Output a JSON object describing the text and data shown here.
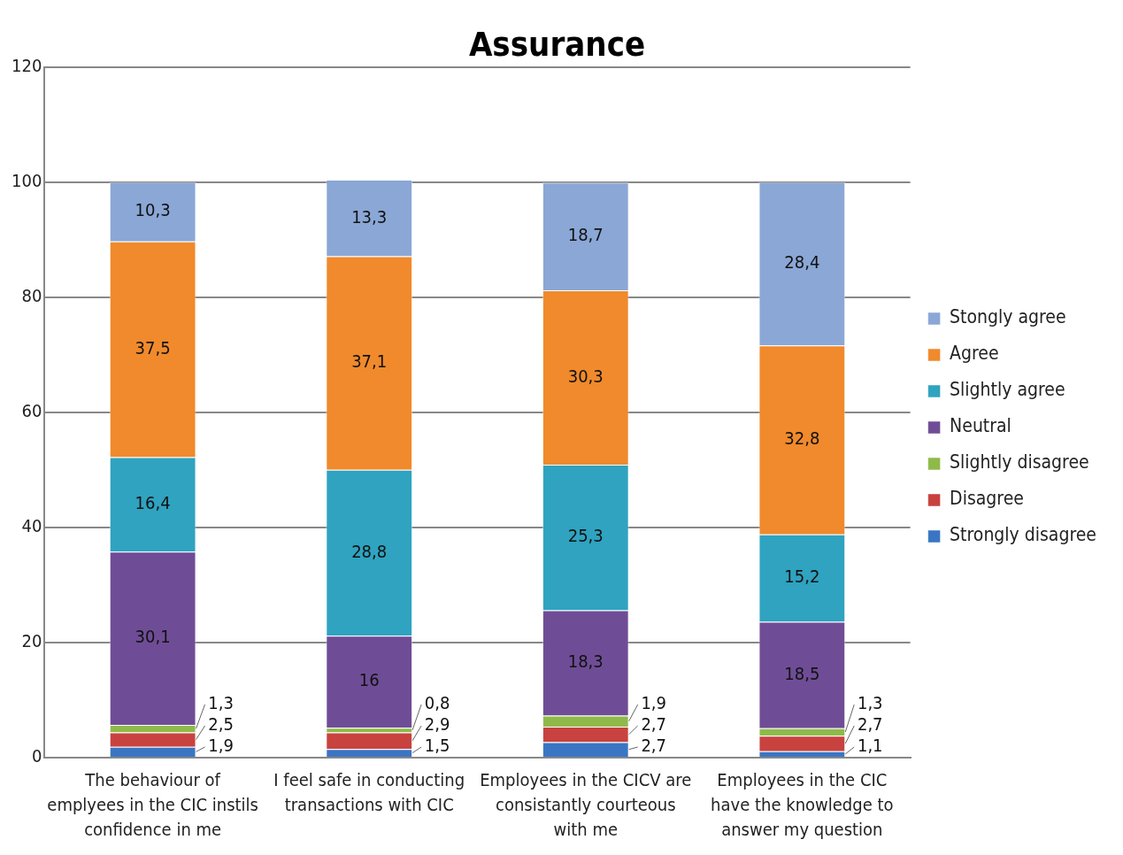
{
  "chart_data": {
    "type": "bar",
    "title": "Assurance",
    "stacked": true,
    "categories": [
      "The behaviour of emplyees in the CIC instils confidence in me",
      "I feel safe in conducting transactions with CIC",
      "Employees in the CICV are consistantly courteous with me",
      "Employees in the CIC have the knowledge to answer my question"
    ],
    "series": [
      {
        "name": "Strongly disagree",
        "color": "#3a75c4",
        "values": [
          1.9,
          1.5,
          2.7,
          1.1
        ],
        "value_labels": [
          "1,9",
          "1,5",
          "2,7",
          "1,1"
        ]
      },
      {
        "name": "Disagree",
        "color": "#c8423f",
        "values": [
          2.5,
          2.9,
          2.7,
          2.7
        ],
        "value_labels": [
          "2,5",
          "2,9",
          "2,7",
          "2,7"
        ]
      },
      {
        "name": "Slightly disagree",
        "color": "#8fba4a",
        "values": [
          1.3,
          0.8,
          1.9,
          1.3
        ],
        "value_labels": [
          "1,3",
          "0,8",
          "1,9",
          "1,3"
        ]
      },
      {
        "name": "Neutral",
        "color": "#6f4d96",
        "values": [
          30.1,
          16,
          18.3,
          18.5
        ],
        "value_labels": [
          "30,1",
          "16",
          "18,3",
          "18,5"
        ]
      },
      {
        "name": "Slightly agree",
        "color": "#2fa3c0",
        "values": [
          16.4,
          28.8,
          25.3,
          15.2
        ],
        "value_labels": [
          "16,4",
          "28,8",
          "25,3",
          "15,2"
        ]
      },
      {
        "name": "Agree",
        "color": "#f08a2c",
        "values": [
          37.5,
          37.1,
          30.3,
          32.8
        ],
        "value_labels": [
          "37,5",
          "37,1",
          "30,3",
          "32,8"
        ]
      },
      {
        "name": "Stongly agree",
        "color": "#8aa7d6",
        "values": [
          10.3,
          13.3,
          18.7,
          28.4
        ],
        "value_labels": [
          "10,3",
          "13,3",
          "18,7",
          "28,4"
        ]
      }
    ],
    "ylim": [
      0,
      120
    ],
    "yticks": [
      0,
      20,
      40,
      60,
      80,
      100,
      120
    ],
    "grid": "y",
    "legend": "right"
  }
}
